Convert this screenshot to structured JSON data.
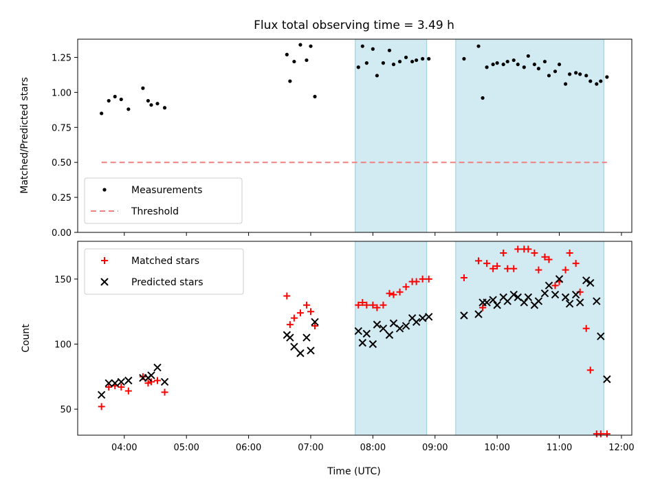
{
  "title": "Flux total observing time = 3.49 h",
  "colors": {
    "measurement": "#000000",
    "threshold": "#f08080",
    "matched": "#ff0000",
    "predicted": "#000000",
    "shade": "#add8e6"
  },
  "chart_data": [
    {
      "type": "scatter",
      "name": "ratio-panel",
      "ylabel": "Matched/Predicted stars",
      "xlabel": "",
      "xlim": [
        "03:15",
        "12:10"
      ],
      "ylim": [
        0.0,
        1.38
      ],
      "yticks": [
        0.0,
        0.25,
        0.5,
        0.75,
        1.0,
        1.25
      ],
      "ytick_labels": [
        "0.00",
        "0.25",
        "0.50",
        "0.75",
        "1.00",
        "1.25"
      ],
      "shaded_intervals": [
        [
          "07:43",
          "08:52"
        ],
        [
          "09:20",
          "11:43"
        ]
      ],
      "legend": {
        "position": "lower left",
        "entries": [
          "Measurements",
          "Threshold"
        ]
      },
      "series": [
        {
          "name": "Measurements",
          "marker": "dot",
          "x": [
            "03:38",
            "03:45",
            "03:51",
            "03:57",
            "04:04",
            "04:18",
            "04:23",
            "04:26",
            "04:32",
            "04:39",
            "06:37",
            "06:40",
            "06:44",
            "06:50",
            "06:56",
            "07:00",
            "07:04",
            "07:46",
            "07:50",
            "07:54",
            "08:00",
            "08:04",
            "08:10",
            "08:16",
            "08:20",
            "08:26",
            "08:32",
            "08:38",
            "08:42",
            "08:48",
            "08:54",
            "09:28",
            "09:42",
            "09:46",
            "09:50",
            "09:56",
            "10:00",
            "10:06",
            "10:10",
            "10:16",
            "10:20",
            "10:26",
            "10:30",
            "10:36",
            "10:40",
            "10:46",
            "10:50",
            "10:56",
            "11:00",
            "11:06",
            "11:10",
            "11:16",
            "11:20",
            "11:26",
            "11:30",
            "11:36",
            "11:40",
            "11:46"
          ],
          "y": [
            0.85,
            0.94,
            0.97,
            0.95,
            0.88,
            1.03,
            0.94,
            0.91,
            0.92,
            0.89,
            1.27,
            1.08,
            1.22,
            1.34,
            1.23,
            1.33,
            0.97,
            1.18,
            1.33,
            1.21,
            1.31,
            1.12,
            1.21,
            1.3,
            1.2,
            1.22,
            1.25,
            1.22,
            1.23,
            1.24,
            1.24,
            1.24,
            1.33,
            0.96,
            1.18,
            1.2,
            1.21,
            1.2,
            1.22,
            1.23,
            1.2,
            1.18,
            1.26,
            1.2,
            1.17,
            1.22,
            1.12,
            1.15,
            1.2,
            1.06,
            1.13,
            1.14,
            1.13,
            1.12,
            1.08,
            1.06,
            1.08,
            1.11
          ]
        },
        {
          "name": "Threshold",
          "style": "dashed",
          "x": [
            "03:38",
            "11:46"
          ],
          "y": [
            0.5,
            0.5
          ]
        }
      ]
    },
    {
      "type": "scatter",
      "name": "count-panel",
      "ylabel": "Count",
      "xlabel": "Time (UTC)",
      "xlim": [
        "03:15",
        "12:10"
      ],
      "ylim": [
        30,
        179
      ],
      "yticks": [
        50,
        100,
        150
      ],
      "ytick_labels": [
        "50",
        "100",
        "150"
      ],
      "xticks": [
        "04:00",
        "05:00",
        "06:00",
        "07:00",
        "08:00",
        "09:00",
        "10:00",
        "11:00",
        "12:00"
      ],
      "shaded_intervals": [
        [
          "07:43",
          "08:52"
        ],
        [
          "09:20",
          "11:43"
        ]
      ],
      "legend": {
        "position": "upper left",
        "entries": [
          "Matched stars",
          "Predicted stars"
        ]
      },
      "series": [
        {
          "name": "Matched stars",
          "marker": "plus",
          "x": [
            "03:38",
            "03:45",
            "03:51",
            "03:57",
            "04:04",
            "04:18",
            "04:23",
            "04:26",
            "04:32",
            "04:39",
            "06:37",
            "06:40",
            "06:44",
            "06:50",
            "06:56",
            "07:00",
            "07:04",
            "07:46",
            "07:50",
            "07:54",
            "08:00",
            "08:04",
            "08:10",
            "08:16",
            "08:20",
            "08:26",
            "08:32",
            "08:38",
            "08:42",
            "08:48",
            "08:54",
            "09:28",
            "09:42",
            "09:46",
            "09:50",
            "09:56",
            "10:00",
            "10:06",
            "10:10",
            "10:16",
            "10:20",
            "10:26",
            "10:30",
            "10:36",
            "10:40",
            "10:46",
            "10:50",
            "10:56",
            "11:00",
            "11:06",
            "11:10",
            "11:16",
            "11:20",
            "11:26",
            "11:30",
            "11:36",
            "11:40",
            "11:46"
          ],
          "y": [
            52,
            67,
            68,
            67,
            64,
            75,
            70,
            71,
            72,
            63,
            137,
            115,
            120,
            124,
            130,
            125,
            114,
            130,
            132,
            130,
            130,
            128,
            130,
            139,
            138,
            140,
            144,
            148,
            148,
            150,
            150,
            151,
            164,
            128,
            162,
            158,
            160,
            170,
            158,
            158,
            173,
            173,
            173,
            170,
            157,
            167,
            165,
            145,
            148,
            157,
            170,
            162,
            140,
            112,
            80,
            31,
            31,
            31
          ],
          "y_note": "approximate"
        },
        {
          "name": "Predicted stars",
          "marker": "x",
          "x": [
            "03:38",
            "03:45",
            "03:51",
            "03:57",
            "04:04",
            "04:18",
            "04:23",
            "04:26",
            "04:32",
            "04:39",
            "06:37",
            "06:40",
            "06:44",
            "06:50",
            "06:56",
            "07:00",
            "07:04",
            "07:46",
            "07:50",
            "07:54",
            "08:00",
            "08:04",
            "08:10",
            "08:16",
            "08:20",
            "08:26",
            "08:32",
            "08:38",
            "08:42",
            "08:48",
            "08:54",
            "09:28",
            "09:42",
            "09:46",
            "09:50",
            "09:56",
            "10:00",
            "10:06",
            "10:10",
            "10:16",
            "10:20",
            "10:26",
            "10:30",
            "10:36",
            "10:40",
            "10:46",
            "10:50",
            "10:56",
            "11:00",
            "11:06",
            "11:10",
            "11:16",
            "11:20",
            "11:26",
            "11:30",
            "11:36",
            "11:40",
            "11:46"
          ],
          "y": [
            61,
            70,
            70,
            71,
            72,
            74,
            74,
            76,
            82,
            71,
            107,
            105,
            98,
            93,
            105,
            95,
            117,
            110,
            101,
            108,
            100,
            115,
            112,
            107,
            116,
            112,
            114,
            120,
            117,
            120,
            121,
            122,
            123,
            132,
            132,
            134,
            130,
            136,
            133,
            138,
            136,
            132,
            136,
            130,
            133,
            139,
            145,
            138,
            150,
            136,
            131,
            138,
            132,
            149,
            147,
            133,
            106,
            73
          ],
          "y_note": "approximate"
        }
      ]
    }
  ]
}
